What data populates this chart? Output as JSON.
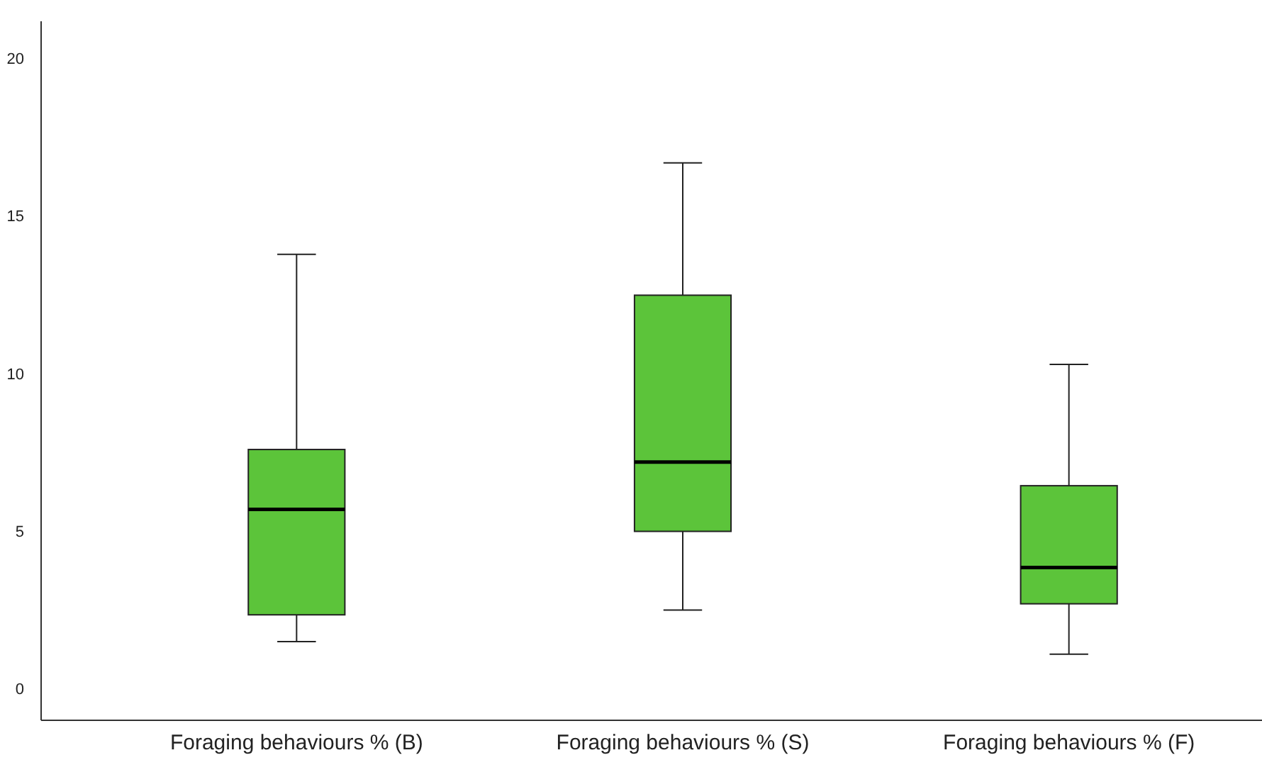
{
  "chart_data": {
    "type": "box",
    "categories": [
      "Foraging behaviours % (B)",
      "Foraging behaviours % (S)",
      "Foraging behaviours % (F)"
    ],
    "boxes": [
      {
        "low": 1.5,
        "q1": 2.35,
        "median": 5.7,
        "q3": 7.6,
        "high": 13.8
      },
      {
        "low": 2.5,
        "q1": 5.0,
        "median": 7.2,
        "q3": 12.5,
        "high": 16.7
      },
      {
        "low": 1.1,
        "q1": 2.7,
        "median": 3.85,
        "q3": 6.45,
        "high": 10.3
      }
    ],
    "color": "#5cc43a",
    "ylim": [
      -1,
      21.2
    ],
    "yticks": [
      0,
      5,
      10,
      15,
      20
    ],
    "grid": false
  }
}
